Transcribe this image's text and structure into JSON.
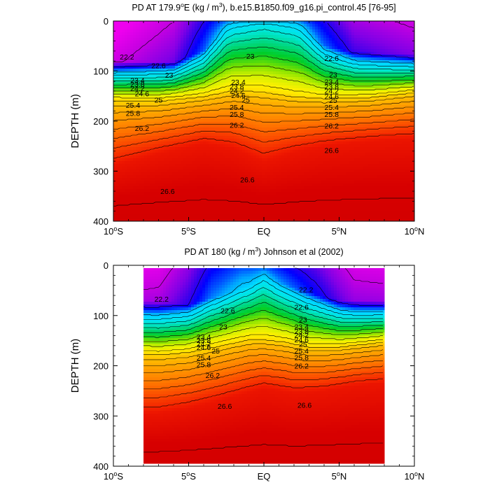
{
  "chart_data": [
    {
      "type": "heatmap",
      "title": "PD AT 179.9°E (kg / m³), b.e15.B1850.f09_g16.pi_control.45 [76-95]",
      "title_parts": {
        "prefix": "PD AT 179.9",
        "deg": "o",
        "mid": "E (kg / m",
        "sup": "3",
        "suffix": "), b.e15.B1850.f09_g16.pi_control.45 [76-95]"
      },
      "ylabel": "DEPTH (m)",
      "xlim": [
        -10,
        10
      ],
      "ylim": [
        400,
        0
      ],
      "x_ticks": [
        {
          "value": -10,
          "num": "10",
          "deg": "o",
          "hemi": "S"
        },
        {
          "value": -5,
          "num": "5",
          "deg": "o",
          "hemi": "S"
        },
        {
          "value": 0,
          "num": "EQ",
          "deg": "",
          "hemi": ""
        },
        {
          "value": 5,
          "num": "5",
          "deg": "o",
          "hemi": "N"
        },
        {
          "value": 10,
          "num": "10",
          "deg": "o",
          "hemi": "N"
        }
      ],
      "y_ticks": [
        "0",
        "100",
        "200",
        "300",
        "400"
      ],
      "y_tick_values": [
        0,
        100,
        200,
        300,
        400
      ],
      "data_xrange": [
        -10,
        10
      ],
      "contour_levels": [
        22.2,
        22.6,
        23.0,
        23.2,
        23.4,
        23.6,
        23.8,
        24.0,
        24.2,
        24.4,
        24.6,
        24.8,
        25.0,
        25.2,
        25.4,
        25.6,
        25.8,
        26.0,
        26.2,
        26.6
      ],
      "contour_labels": [
        {
          "text": "22.2",
          "x": -9.1,
          "y": 71
        },
        {
          "text": "22.6",
          "x": -7.0,
          "y": 89
        },
        {
          "text": "23",
          "x": -6.3,
          "y": 108
        },
        {
          "text": "23.4",
          "x": -8.4,
          "y": 118
        },
        {
          "text": "23.8",
          "x": -8.4,
          "y": 126
        },
        {
          "text": "24.2",
          "x": -8.4,
          "y": 134
        },
        {
          "text": "24.6",
          "x": -8.1,
          "y": 145
        },
        {
          "text": "25",
          "x": -7.0,
          "y": 157
        },
        {
          "text": "25.4",
          "x": -8.7,
          "y": 168
        },
        {
          "text": "25.8",
          "x": -8.7,
          "y": 184
        },
        {
          "text": "26.2",
          "x": -8.1,
          "y": 214
        },
        {
          "text": "26.6",
          "x": -6.4,
          "y": 340
        },
        {
          "text": "23",
          "x": -0.9,
          "y": 70
        },
        {
          "text": "23.4",
          "x": -1.7,
          "y": 122
        },
        {
          "text": "23.8",
          "x": -1.8,
          "y": 131
        },
        {
          "text": "24.2",
          "x": -1.8,
          "y": 139
        },
        {
          "text": "24.6",
          "x": -1.7,
          "y": 148
        },
        {
          "text": "25",
          "x": -1.2,
          "y": 157
        },
        {
          "text": "25.4",
          "x": -1.8,
          "y": 172
        },
        {
          "text": "25.8",
          "x": -1.8,
          "y": 186
        },
        {
          "text": "26.2",
          "x": -1.8,
          "y": 208
        },
        {
          "text": "26.6",
          "x": -1.1,
          "y": 317
        },
        {
          "text": "22.6",
          "x": 4.5,
          "y": 74
        },
        {
          "text": "23",
          "x": 4.6,
          "y": 107
        },
        {
          "text": "23.4",
          "x": 4.5,
          "y": 121
        },
        {
          "text": "23.8",
          "x": 4.5,
          "y": 131
        },
        {
          "text": "24.2",
          "x": 4.5,
          "y": 139
        },
        {
          "text": "24.6",
          "x": 4.5,
          "y": 150
        },
        {
          "text": "25",
          "x": 4.6,
          "y": 158
        },
        {
          "text": "25.4",
          "x": 4.5,
          "y": 172
        },
        {
          "text": "25.8",
          "x": 4.5,
          "y": 186
        },
        {
          "text": "26.2",
          "x": 4.5,
          "y": 209
        },
        {
          "text": "26.6",
          "x": 4.5,
          "y": 258
        }
      ]
    },
    {
      "type": "heatmap",
      "title": "PD AT 180 (kg / m³) Johnson et al (2002)",
      "title_parts": {
        "prefix": "PD AT 180 (kg / m",
        "deg": "",
        "mid": "",
        "sup": "3",
        "suffix": ") Johnson et al (2002)"
      },
      "ylabel": "DEPTH (m)",
      "xlim": [
        -10,
        10
      ],
      "ylim": [
        400,
        0
      ],
      "x_ticks": [
        {
          "value": -10,
          "num": "10",
          "deg": "o",
          "hemi": "S"
        },
        {
          "value": -5,
          "num": "5",
          "deg": "o",
          "hemi": "S"
        },
        {
          "value": 0,
          "num": "EQ",
          "deg": "",
          "hemi": ""
        },
        {
          "value": 5,
          "num": "5",
          "deg": "o",
          "hemi": "N"
        },
        {
          "value": 10,
          "num": "10",
          "deg": "o",
          "hemi": "N"
        }
      ],
      "y_ticks": [
        "0",
        "100",
        "200",
        "300",
        "400"
      ],
      "y_tick_values": [
        0,
        100,
        200,
        300,
        400
      ],
      "data_xrange": [
        -8,
        8
      ],
      "contour_levels": [
        22.2,
        22.6,
        23.0,
        23.2,
        23.4,
        23.6,
        23.8,
        24.0,
        24.2,
        24.4,
        24.6,
        24.8,
        25.0,
        25.2,
        25.4,
        25.6,
        25.8,
        26.0,
        26.2,
        26.6
      ],
      "contour_labels": [
        {
          "text": "22.2",
          "x": -6.8,
          "y": 67
        },
        {
          "text": "22.6",
          "x": -2.4,
          "y": 90
        },
        {
          "text": "23",
          "x": -2.7,
          "y": 122
        },
        {
          "text": "23.4",
          "x": -4.0,
          "y": 142
        },
        {
          "text": "23.8",
          "x": -4.0,
          "y": 149
        },
        {
          "text": "24.2",
          "x": -4.0,
          "y": 156
        },
        {
          "text": "24.6",
          "x": -4.0,
          "y": 163
        },
        {
          "text": "25",
          "x": -3.2,
          "y": 170
        },
        {
          "text": "25.4",
          "x": -4.0,
          "y": 184
        },
        {
          "text": "25.8",
          "x": -4.0,
          "y": 197
        },
        {
          "text": "26.2",
          "x": -3.4,
          "y": 219
        },
        {
          "text": "26.6",
          "x": -2.6,
          "y": 280
        },
        {
          "text": "22.2",
          "x": 2.8,
          "y": 48
        },
        {
          "text": "22.6",
          "x": 2.5,
          "y": 83
        },
        {
          "text": "23",
          "x": 2.6,
          "y": 108
        },
        {
          "text": "23.4",
          "x": 2.5,
          "y": 122
        },
        {
          "text": "23.8",
          "x": 2.5,
          "y": 131
        },
        {
          "text": "24.2",
          "x": 2.5,
          "y": 139
        },
        {
          "text": "24.6",
          "x": 2.5,
          "y": 148
        },
        {
          "text": "25",
          "x": 2.6,
          "y": 157
        },
        {
          "text": "25.4",
          "x": 2.5,
          "y": 170
        },
        {
          "text": "25.8",
          "x": 2.5,
          "y": 183
        },
        {
          "text": "26.2",
          "x": 2.5,
          "y": 200
        },
        {
          "text": "26.6",
          "x": 2.7,
          "y": 278
        }
      ]
    }
  ]
}
